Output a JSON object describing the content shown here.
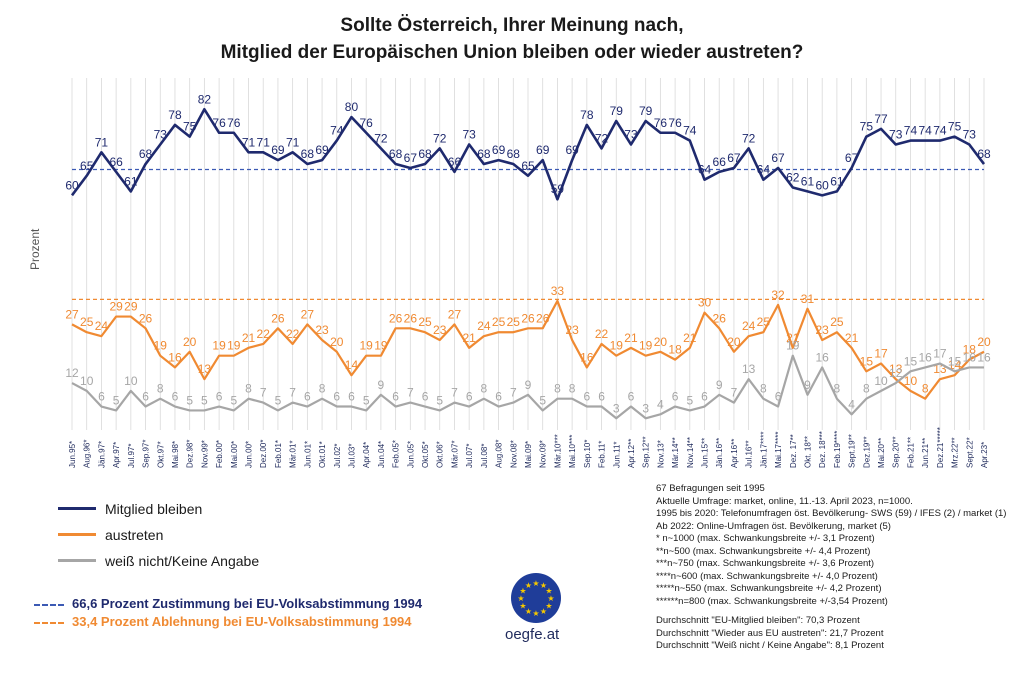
{
  "title_lines": [
    "Sollte Österreich, Ihrer Meinung nach,",
    "Mitglied der Europäischen Union bleiben oder wieder austreten?"
  ],
  "y_axis_label": "Prozent",
  "colors": {
    "bleiben": "#1f2a6e",
    "austreten": "#f08a32",
    "weissnicht": "#a6a6a6",
    "grid": "#d9d9d9"
  },
  "chart_data": {
    "type": "line",
    "title": "Sollte Österreich, Ihrer Meinung nach, Mitglied der Europäischen Union bleiben oder wieder austreten?",
    "ylabel": "Prozent",
    "x": [
      "Jun.95*",
      "Aug.96*",
      "Jän.97*",
      "Apr.97*",
      "Jul.97*",
      "Sep.97*",
      "Okt.97*",
      "Mai.98*",
      "Dez.98*",
      "Nov.99*",
      "Feb.00*",
      "Mai.00*",
      "Jun.00*",
      "Dez.00*",
      "Feb.01*",
      "Mär.01*",
      "Jun.01*",
      "Okt.01*",
      "Jul.02*",
      "Jul.03*",
      "Apr.04*",
      "Jun.04*",
      "Feb.05*",
      "Jun.05*",
      "Okt.05*",
      "Okt.06*",
      "Mär.07*",
      "Jul.07*",
      "Jul.08*",
      "Aug.08*",
      "Nov.08*",
      "Mai.09*",
      "Nov.09*",
      "Mär.10***",
      "Mai.10***",
      "Sep.10*",
      "Feb.11*",
      "Jun.11*",
      "Apr.12**",
      "Sep.12**",
      "Nov.13*",
      "Mär.14**",
      "Nov.14**",
      "Jun.15**",
      "Jän.16**",
      "Apr.16**",
      "Jul.16**",
      "Jän.17****",
      "Mai.17****",
      "Dez. 17**",
      "Okt. 18**",
      "Dez. 18***",
      "Feb.19****",
      "Sept.19**",
      "Dez.19**",
      "Mai.20**",
      "Sep.20**",
      "Feb.21**",
      "Jun.21**",
      "Dez.21*****",
      "Mrz.22**",
      "Sept.22*",
      "Apr.23*"
    ],
    "series": [
      {
        "name": "Mitglied bleiben",
        "values": [
          60,
          65,
          71,
          66,
          61,
          68,
          73,
          78,
          75,
          82,
          76,
          76,
          71,
          71,
          69,
          71,
          68,
          69,
          74,
          80,
          76,
          72,
          68,
          67,
          68,
          72,
          66,
          73,
          68,
          69,
          68,
          65,
          69,
          59,
          69,
          78,
          72,
          79,
          73,
          79,
          76,
          76,
          74,
          64,
          66,
          67,
          72,
          64,
          67,
          62,
          61,
          60,
          61,
          67,
          75,
          77,
          73,
          74,
          74,
          74,
          75,
          73,
          68
        ]
      },
      {
        "name": "austreten",
        "values": [
          27,
          25,
          24,
          29,
          29,
          26,
          19,
          16,
          20,
          13,
          19,
          19,
          21,
          22,
          26,
          22,
          27,
          23,
          20,
          14,
          19,
          19,
          26,
          26,
          25,
          23,
          27,
          21,
          24,
          25,
          25,
          26,
          26,
          33,
          23,
          16,
          22,
          19,
          21,
          19,
          20,
          18,
          21,
          30,
          26,
          20,
          24,
          25,
          32,
          21,
          31,
          23,
          25,
          21,
          15,
          17,
          13,
          10,
          8,
          13,
          14,
          18,
          20
        ]
      },
      {
        "name": "weiß nicht/Keine Angabe",
        "values": [
          12,
          10,
          6,
          5,
          10,
          6,
          8,
          6,
          5,
          5,
          6,
          5,
          8,
          7,
          5,
          7,
          6,
          8,
          6,
          6,
          5,
          9,
          6,
          7,
          6,
          5,
          7,
          6,
          8,
          6,
          7,
          9,
          5,
          8,
          8,
          6,
          6,
          3,
          6,
          3,
          4,
          6,
          5,
          6,
          9,
          7,
          13,
          8,
          6,
          19,
          9,
          16,
          8,
          4,
          8,
          10,
          12,
          15,
          16,
          17,
          15,
          16,
          16
        ]
      }
    ],
    "reference_lines": [
      {
        "name": "66,6 Prozent Zustimmung bei EU-Volksabstimmung 1994",
        "value": 66.6
      },
      {
        "name": "33,4 Prozent Ablehnung bei EU-Volksabstimmung 1994",
        "value": 33.4
      }
    ]
  },
  "legend": [
    {
      "label": "Mitglied bleiben",
      "key": "bleiben"
    },
    {
      "label": "austreten",
      "key": "austreten"
    },
    {
      "label": "weiß nicht/Keine Angabe",
      "key": "weissnicht"
    }
  ],
  "ref_legend": [
    {
      "label": "66,6 Prozent Zustimmung bei EU-Volksabstimmung 1994",
      "key": "bleiben"
    },
    {
      "label": "33,4 Prozent Ablehnung bei EU-Volksabstimmung 1994",
      "key": "austreten"
    }
  ],
  "notes": [
    "67 Befragungen seit 1995",
    "Aktuelle Umfrage: market, online, 11.-13. April 2023, n=1000.",
    "1995 bis 2020: Telefonumfragen öst. Bevölkerung- SWS (59) / IFES (2) / market (1)",
    "Ab 2022: Online-Umfragen öst. Bevölkerung, market (5)",
    "* n~1000 (max. Schwankungsbreite +/- 3,1 Prozent)",
    "**n~500 (max. Schwankungsbreite +/-  4,4 Prozent)",
    "***n~750 (max. Schwankungsbreite +/- 3,6 Prozent)",
    "****n~600 (max. Schwankungsbreite +/- 4,0 Prozent)",
    "*****n~550 (max. Schwankungsbreite +/- 4,2 Prozent)",
    "******n=800 (max. Schwankungsbreite +/-3,54 Prozent)",
    "",
    "Durchschnitt \"EU-Mitglied bleiben\": 70,3 Prozent",
    "Durchschnitt \"Wieder aus EU austreten\":  21,7 Prozent",
    "Durchschnitt \"Weiß nicht / Keine Angabe\": 8,1 Prozent"
  ],
  "logo": {
    "name": "eu-flag-logo",
    "text": "oegfe.at"
  }
}
